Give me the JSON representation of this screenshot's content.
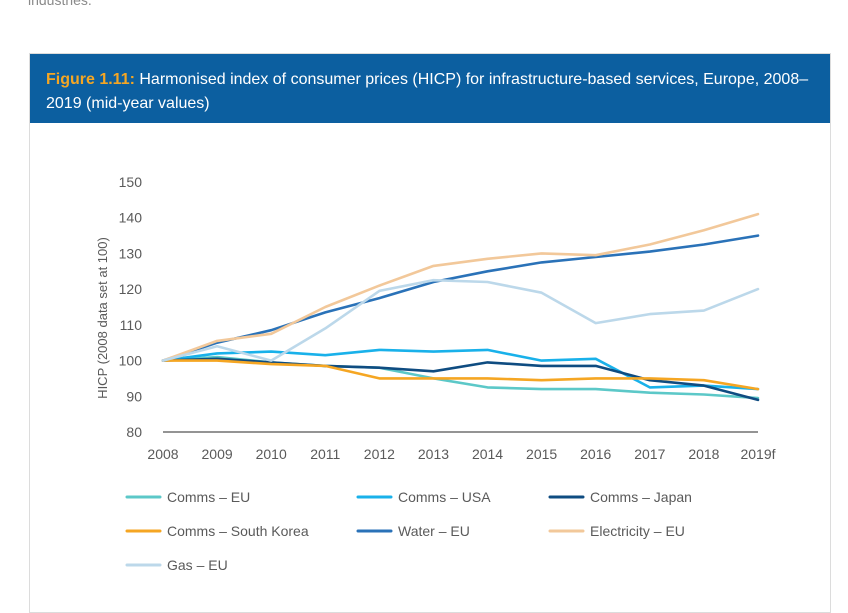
{
  "top_fragment": "industries.",
  "figure": {
    "number": "Figure 1.11:",
    "title": "Harmonised index of consumer prices (HICP) for infrastructure-based services, Europe, 2008–2019 (mid-year values)"
  },
  "chart_data": {
    "type": "line",
    "ylabel": "HICP (2008 data set at 100)",
    "xlabel": "",
    "x": [
      "2008",
      "2009",
      "2010",
      "2011",
      "2012",
      "2013",
      "2014",
      "2015",
      "2016",
      "2017",
      "2018",
      "2019f"
    ],
    "ylim": [
      80,
      150
    ],
    "yticks": [
      80,
      90,
      100,
      110,
      120,
      130,
      140,
      150
    ],
    "grid": false,
    "legend_position": "bottom",
    "series": [
      {
        "name": "Comms – EU",
        "color": "#5cc8c8",
        "values": [
          100,
          101,
          99.5,
          98.5,
          98,
          95,
          92.5,
          92,
          92,
          91,
          90.5,
          89.5
        ]
      },
      {
        "name": "Comms – USA",
        "color": "#19b1ea",
        "values": [
          100,
          102,
          102.5,
          101.5,
          103,
          102.5,
          103,
          100,
          100.5,
          92.5,
          93,
          92
        ]
      },
      {
        "name": "Comms – Japan",
        "color": "#0f4c81",
        "values": [
          100,
          100.5,
          99.5,
          98.5,
          98,
          97,
          99.5,
          98.5,
          98.5,
          94.5,
          93,
          89
        ]
      },
      {
        "name": "Comms – South Korea",
        "color": "#f5a623",
        "values": [
          100,
          100,
          99,
          98.5,
          95,
          95,
          95,
          94.5,
          95,
          95,
          94.5,
          92
        ]
      },
      {
        "name": "Water – EU",
        "color": "#2a72b8",
        "values": [
          100,
          105,
          108.5,
          113.5,
          117.5,
          122,
          125,
          127.5,
          129,
          130.5,
          132.5,
          135
        ]
      },
      {
        "name": "Electricity – EU",
        "color": "#f2c89a",
        "values": [
          100,
          105.5,
          107.5,
          115,
          121,
          126.5,
          128.5,
          130,
          129.5,
          132.5,
          136.5,
          141
        ]
      },
      {
        "name": "Gas – EU",
        "color": "#bcd8ea",
        "values": [
          100,
          104,
          100,
          109,
          119.5,
          122.5,
          122,
          119,
          110.5,
          113,
          114,
          120
        ]
      }
    ]
  }
}
